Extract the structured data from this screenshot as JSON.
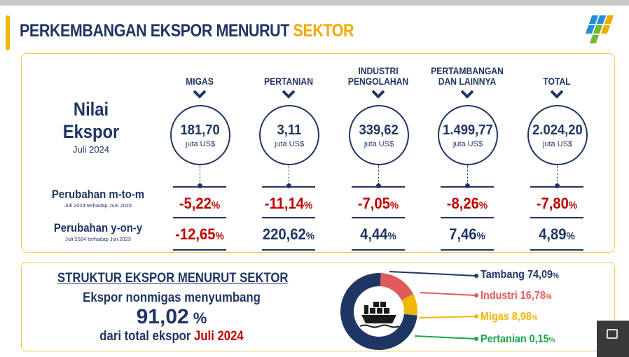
{
  "header": {
    "title_main": "PERKEMBANGAN EKSPOR MENURUT ",
    "title_highlight": "SEKTOR",
    "logo": "bps-logo-icon"
  },
  "nilai": {
    "line1": "Nilai",
    "line2": "Ekspor",
    "period": "Juli 2024"
  },
  "rows": {
    "mtm": {
      "label": "Perubahan m-to-m",
      "note": "Juli 2024 terhadap Juni 2024"
    },
    "yoy": {
      "label": "Perubahan y-on-y",
      "note": "Juli 2024 terhadap Juli 2023"
    }
  },
  "sectors": [
    {
      "name": "MIGAS",
      "value": "181,70",
      "unit": "juta US$",
      "mtm": "-5,22",
      "yoy": "-12,65",
      "yoy_negative": true
    },
    {
      "name": "PERTANIAN",
      "value": "3,11",
      "unit": "juta US$",
      "mtm": "-11,14",
      "yoy": "220,62",
      "yoy_negative": false
    },
    {
      "name": "INDUSTRI PENGOLAHAN",
      "value": "339,62",
      "unit": "juta US$",
      "mtm": "-7,05",
      "yoy": "4,44",
      "yoy_negative": false
    },
    {
      "name": "PERTAMBANGAN DAN LAINNYA",
      "value": "1.499,77",
      "unit": "juta US$",
      "mtm": "-8,26",
      "yoy": "7,46",
      "yoy_negative": false
    },
    {
      "name": "TOTAL",
      "value": "2.024,20",
      "unit": "juta US$",
      "mtm": "-7,80",
      "yoy": "4,89",
      "yoy_negative": false
    }
  ],
  "percent_sign": "%",
  "struktur": {
    "title": "STRUKTUR EKSPOR MENURUT SEKTOR",
    "line1": "Ekspor nonmigas menyumbang",
    "big_value": "91,02",
    "big_pct": " %",
    "line3_prefix": "dari total ekspor ",
    "line3_highlight": "Juli 2024"
  },
  "colors": {
    "navy": "#1f3563",
    "red": "#c00000",
    "gold": "#f2a900",
    "tambang": "#1f3563",
    "industri": "#e05a5a",
    "migas": "#f2b705",
    "pertanian": "#1aa64a"
  },
  "chart_data": {
    "type": "pie",
    "categories": [
      "Tambang",
      "Industri",
      "Migas",
      "Pertanian"
    ],
    "values": [
      74.09,
      16.78,
      8.98,
      0.15
    ],
    "labels": [
      "Tambang 74,09",
      "Industri 16,78",
      "Migas 8,98",
      "Pertanian 0,15"
    ],
    "center_icon": "cargo-ship-icon"
  }
}
